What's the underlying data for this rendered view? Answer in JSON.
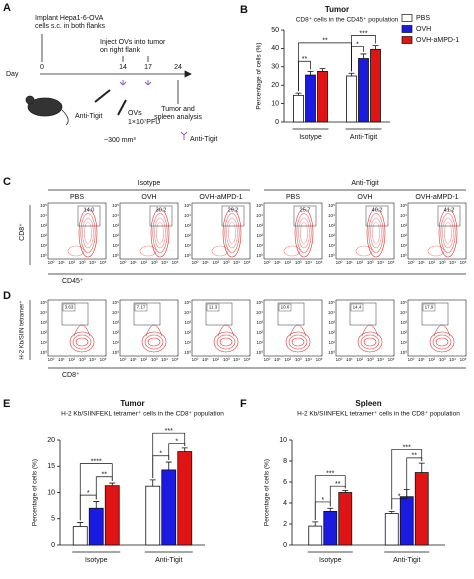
{
  "panel_a": {
    "label": "A",
    "implant": [
      "Implant Hepa1-6-OVA",
      "cells s.c. in both flanks"
    ],
    "inject": [
      "Inject OVs into tumor",
      "on right flank"
    ],
    "day": "Day",
    "days": [
      "0",
      "14",
      "17",
      "24"
    ],
    "analysis": [
      "Tumor and",
      "spleen analysis"
    ],
    "treatment": "Anti-Tigit",
    "ovs": "OVs",
    "dose": "1×10⁷PFU",
    "volume": "~300 mm³",
    "legend": "Anti-Tigit"
  },
  "panel_c": {
    "label": "C",
    "groups": [
      "Isotype",
      "Anti-Tigit"
    ],
    "columns": [
      "PBS",
      "OVH",
      "OVH-aMPD-1",
      "PBS",
      "OVH",
      "OVH-aMPD-1"
    ],
    "gates": [
      "14.0",
      "30.2",
      "29.2",
      "25.7",
      "40.2",
      "41.2"
    ],
    "y_label": "CD8⁺",
    "x_label": "CD45⁺",
    "ticks": [
      "10⁵",
      "10⁴",
      "10³",
      "10²",
      "10¹",
      "10⁰"
    ]
  },
  "panel_d": {
    "label": "D",
    "gates": [
      "3.63",
      "7.17",
      "11.3",
      "10.6",
      "14.4",
      "17.9"
    ],
    "y_label": "H-2 Kb/SIIN tetramer⁺",
    "x_label": "CD8⁺"
  },
  "chart_data": [
    {
      "type": "bar",
      "panel": "B",
      "title": "Tumor",
      "subtitle": "CD8⁺ cells in the CD45⁺ population",
      "y_label": "Percentage of cells (%)",
      "categories": [
        "Isotype",
        "Anti-Tigit"
      ],
      "ylim": [
        0,
        50
      ],
      "yticks": [
        0,
        10,
        20,
        30,
        40,
        50
      ],
      "legend": "right",
      "series": [
        {
          "name": "PBS",
          "color": "#ffffff",
          "values": [
            14.5,
            25
          ],
          "errors": [
            1.2,
            1.5
          ]
        },
        {
          "name": "OVH",
          "color": "#1a1ae0",
          "values": [
            25.5,
            34.5
          ],
          "errors": [
            2,
            2.5
          ]
        },
        {
          "name": "OVH-aMPD-1",
          "color": "#e01414",
          "values": [
            27.5,
            39.5
          ],
          "errors": [
            1.5,
            2
          ]
        }
      ],
      "annotations": [
        "**",
        "**",
        "*",
        "***"
      ]
    },
    {
      "type": "bar",
      "panel": "E",
      "title": "Tumor",
      "subtitle": "H-2 Kb/SIINFEKL tetramer⁺ cells in the CD8⁺ population",
      "y_label": "Percentage of cells (%)",
      "categories": [
        "Isotype",
        "Anti-Tigit"
      ],
      "ylim": [
        0,
        20
      ],
      "yticks": [
        0,
        5,
        10,
        15,
        20
      ],
      "series": [
        {
          "name": "PBS",
          "color": "#ffffff",
          "values": [
            3.5,
            11.2
          ],
          "errors": [
            0.8,
            1.2
          ]
        },
        {
          "name": "OVH",
          "color": "#1a1ae0",
          "values": [
            7,
            14.3
          ],
          "errors": [
            1.3,
            1.5
          ]
        },
        {
          "name": "OVH-aMPD-1",
          "color": "#e01414",
          "values": [
            11.3,
            17.8
          ],
          "errors": [
            0.5,
            0.7
          ]
        }
      ],
      "annotations": [
        "*",
        "**",
        "****",
        "*",
        "*",
        "***"
      ]
    },
    {
      "type": "bar",
      "panel": "F",
      "title": "Spleen",
      "subtitle": "H-2 Kb/SIINFEKL tetramer⁺ cells in the CD8⁺ population",
      "y_label": "Percentage of cells (%)",
      "categories": [
        "Isotype",
        "Anti-Tigit"
      ],
      "ylim": [
        0,
        10
      ],
      "yticks": [
        0,
        2,
        4,
        6,
        8,
        10
      ],
      "series": [
        {
          "name": "PBS",
          "color": "#ffffff",
          "values": [
            1.8,
            3
          ],
          "errors": [
            0.4,
            0.2
          ]
        },
        {
          "name": "OVH",
          "color": "#1a1ae0",
          "values": [
            3.2,
            4.6
          ],
          "errors": [
            0.3,
            0.7
          ]
        },
        {
          "name": "OVH-aMPD-1",
          "color": "#e01414",
          "values": [
            5,
            6.9
          ],
          "errors": [
            0.2,
            0.9
          ]
        }
      ],
      "annotations": [
        "*",
        "**",
        "***",
        "*",
        "**",
        "***"
      ]
    }
  ]
}
